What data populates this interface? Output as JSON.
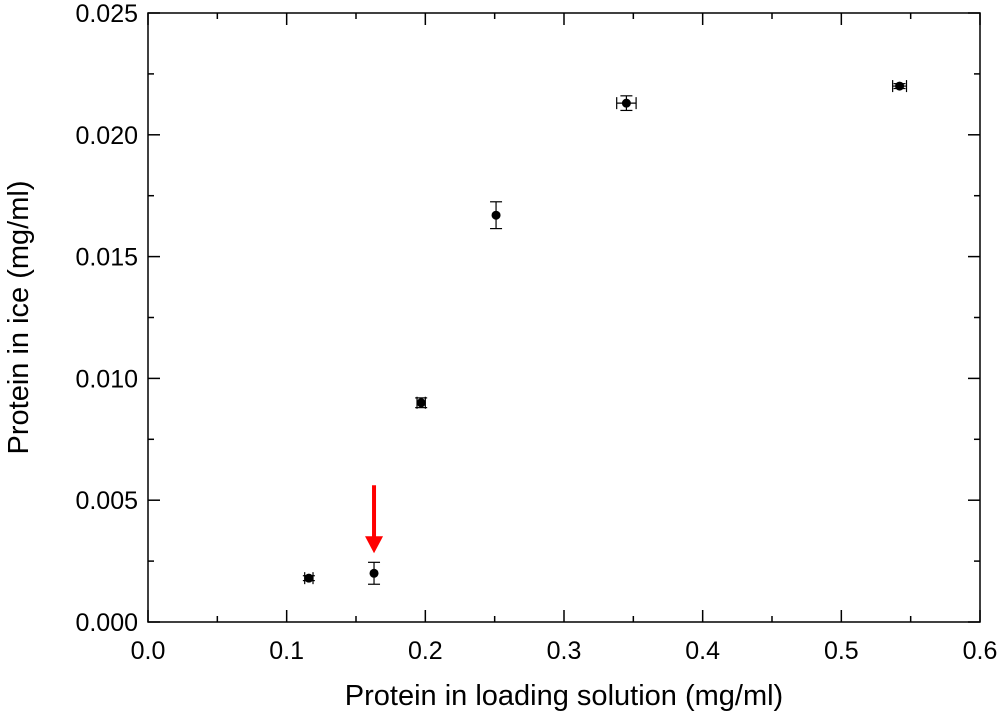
{
  "chart_data": {
    "type": "scatter",
    "title": "",
    "xlabel": "Protein in loading solution (mg/ml)",
    "ylabel": "Protein in ice (mg/ml)",
    "xlim": [
      0.0,
      0.6
    ],
    "ylim": [
      0.0,
      0.025
    ],
    "x_ticks": [
      "0.0",
      "0.1",
      "0.2",
      "0.3",
      "0.4",
      "0.5",
      "0.6"
    ],
    "y_ticks": [
      "0.000",
      "0.005",
      "0.010",
      "0.015",
      "0.020",
      "0.025"
    ],
    "x_tick_values": [
      0.0,
      0.1,
      0.2,
      0.3,
      0.4,
      0.5,
      0.6
    ],
    "y_tick_values": [
      0.0,
      0.005,
      0.01,
      0.015,
      0.02,
      0.025
    ],
    "x_minor_step": 0.05,
    "y_minor_step": 0.0025,
    "grid": false,
    "legend": "none",
    "series": [
      {
        "points": [
          {
            "x": 0.116,
            "y": 0.0018,
            "x_err": 0.003,
            "y_err": 0.0001
          },
          {
            "x": 0.163,
            "y": 0.002,
            "x_err": 0.0,
            "y_err": 0.00045
          },
          {
            "x": 0.197,
            "y": 0.009,
            "x_err": 0.003,
            "y_err": 0.0002
          },
          {
            "x": 0.251,
            "y": 0.0167,
            "x_err": 0.0,
            "y_err": 0.00055
          },
          {
            "x": 0.345,
            "y": 0.0213,
            "x_err": 0.007,
            "y_err": 0.0003
          },
          {
            "x": 0.542,
            "y": 0.022,
            "x_err": 0.005,
            "y_err": 0.0001
          }
        ]
      }
    ],
    "annotations": [
      {
        "type": "arrow",
        "points_to_x": 0.163,
        "points_to_y": 0.002,
        "color": "#ff0000"
      }
    ],
    "colors": {
      "marker": "#000000",
      "axis": "#000000",
      "arrow": "#ff0000"
    }
  }
}
